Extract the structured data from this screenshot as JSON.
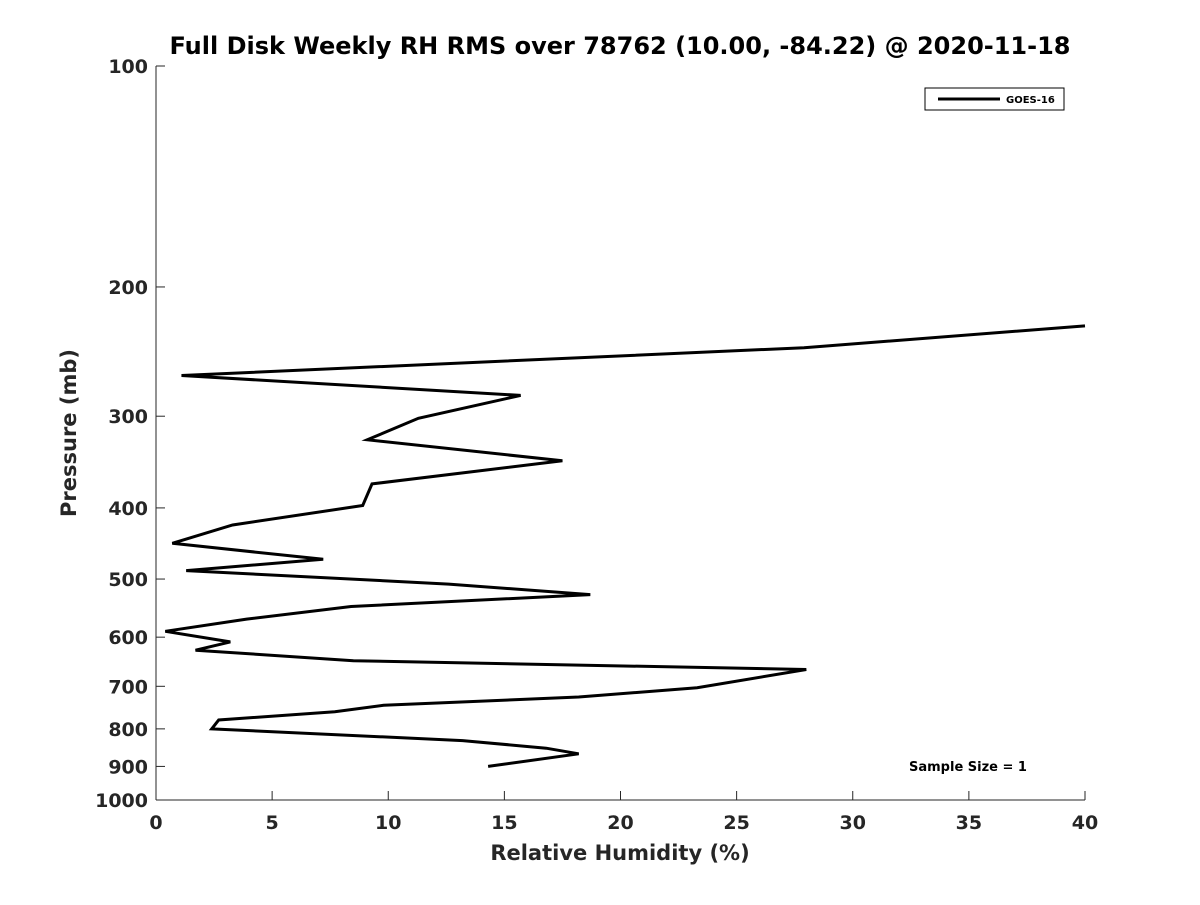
{
  "chart_data": {
    "type": "line",
    "title": "Full Disk Weekly RH RMS over 78762 (10.00, -84.22) @ 2020-11-18",
    "xlabel": "Relative Humidity (%)",
    "ylabel": "Pressure (mb)",
    "xlim": [
      0,
      40
    ],
    "ylim": [
      100,
      1000
    ],
    "y_scale": "log",
    "y_reversed": true,
    "x_ticks": [
      "0",
      "5",
      "10",
      "15",
      "20",
      "25",
      "30",
      "35",
      "40"
    ],
    "y_ticks": [
      "100",
      "200",
      "300",
      "400",
      "500",
      "600",
      "700",
      "800",
      "900",
      "1000"
    ],
    "grid": false,
    "legend": {
      "placement": "top-right",
      "entries": [
        "GOES-16"
      ]
    },
    "annotation": "Sample Size = 1",
    "series": [
      {
        "name": "GOES-16",
        "color": "#000000",
        "points": [
          [
            40.0,
            226
          ],
          [
            27.9,
            242
          ],
          [
            1.1,
            264
          ],
          [
            15.7,
            281
          ],
          [
            11.3,
            302
          ],
          [
            9.1,
            323
          ],
          [
            17.5,
            345
          ],
          [
            9.3,
            371
          ],
          [
            8.9,
            397
          ],
          [
            3.3,
            422
          ],
          [
            0.7,
            447
          ],
          [
            7.2,
            470
          ],
          [
            1.3,
            487
          ],
          [
            12.6,
            508
          ],
          [
            18.7,
            525
          ],
          [
            8.4,
            545
          ],
          [
            3.9,
            567
          ],
          [
            0.4,
            589
          ],
          [
            3.2,
            609
          ],
          [
            1.7,
            625
          ],
          [
            8.5,
            646
          ],
          [
            28.0,
            664
          ],
          [
            23.3,
            703
          ],
          [
            18.2,
            724
          ],
          [
            9.8,
            743
          ],
          [
            7.7,
            758
          ],
          [
            2.7,
            778
          ],
          [
            2.4,
            800
          ],
          [
            13.2,
            830
          ],
          [
            16.8,
            850
          ],
          [
            18.2,
            865
          ],
          [
            14.3,
            900
          ]
        ]
      }
    ]
  }
}
